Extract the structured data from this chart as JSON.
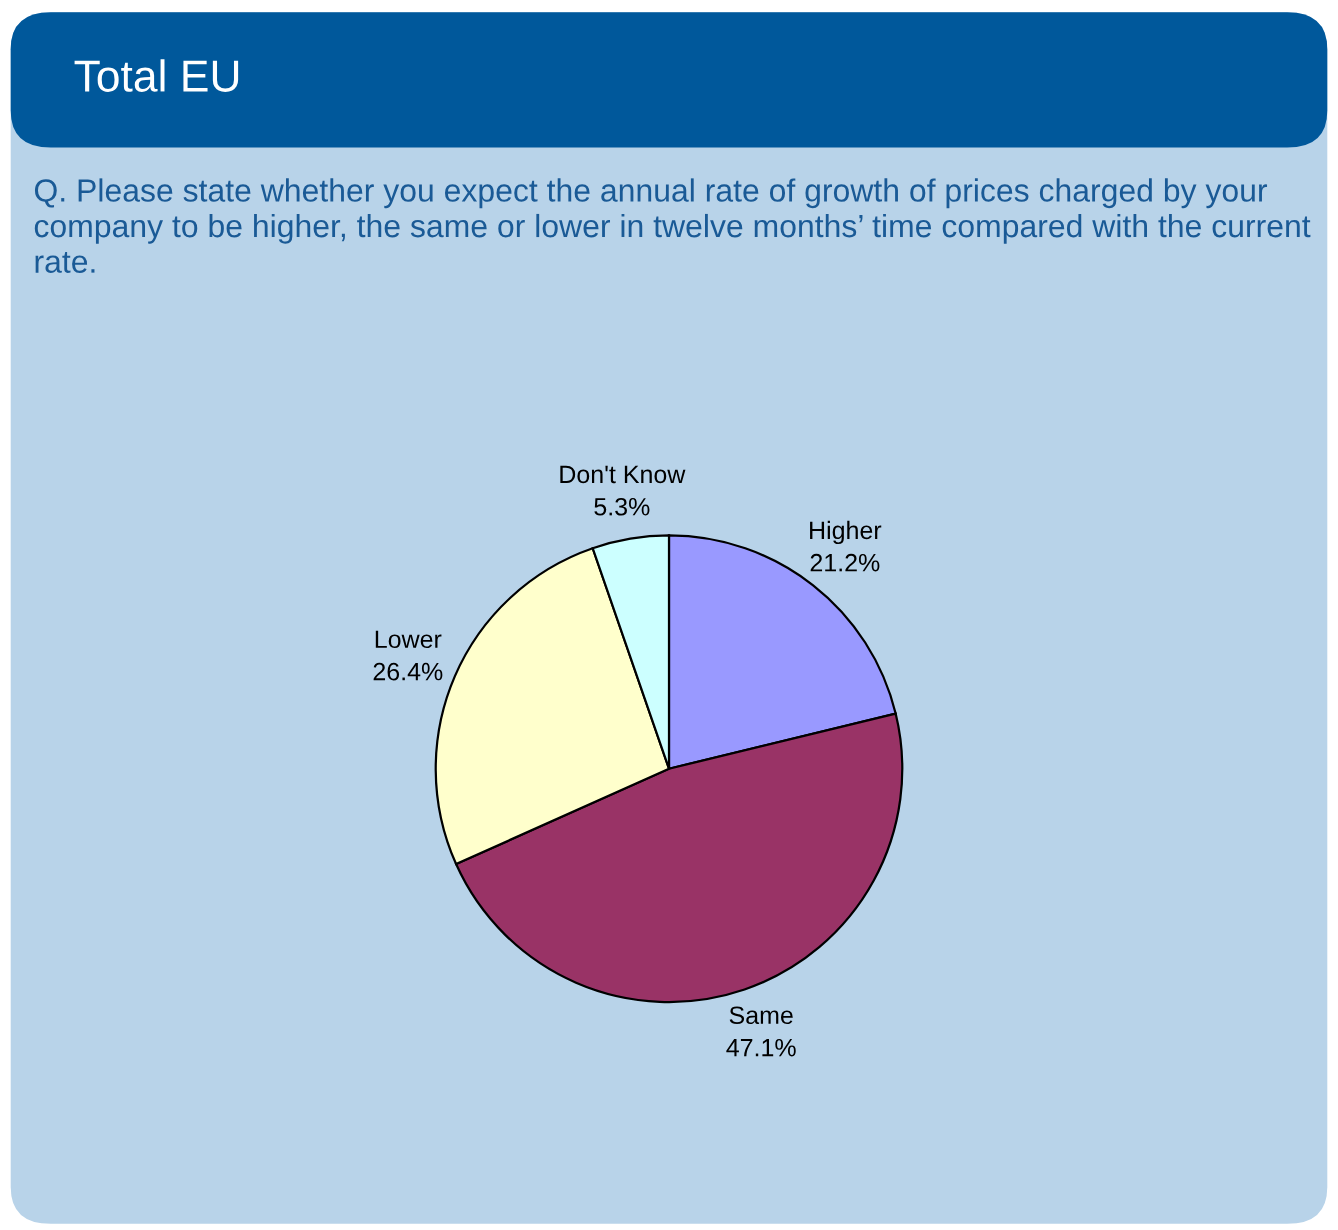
{
  "chart_data": {
    "type": "pie",
    "title": "Total EU",
    "subtitle": "Q. Please state whether you expect the annual rate of growth of prices charged by your company to be higher, the same or lower in twelve months’ time compared with the current rate.",
    "categories": [
      "Higher",
      "Same",
      "Lower",
      "Don't Know"
    ],
    "values": [
      21.2,
      47.1,
      26.4,
      5.3
    ],
    "value_labels": [
      "21.2%",
      "47.1%",
      "26.4%",
      "5.3%"
    ],
    "colors": [
      "#9999ff",
      "#993366",
      "#ffffcc",
      "#ccffff"
    ]
  }
}
